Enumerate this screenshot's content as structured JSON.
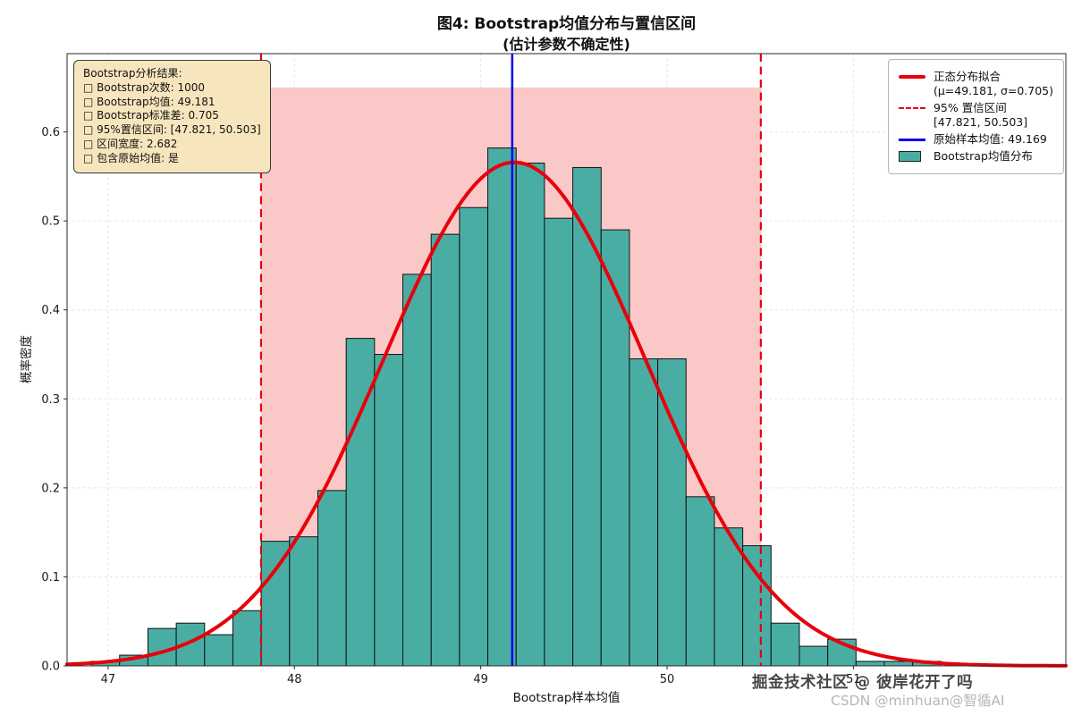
{
  "title": {
    "line1": "图4: Bootstrap均值分布与置信区间",
    "line2": "(估计参数不确定性)"
  },
  "axes": {
    "xlabel": "Bootstrap样本均值",
    "ylabel": "概率密度"
  },
  "stats_box": {
    "title": "Bootstrap分析结果:",
    "lines": [
      "□ Bootstrap次数: 1000",
      "□ Bootstrap均值: 49.181",
      "□ Bootstrap标准差: 0.705",
      "□ 95%置信区间: [47.821, 50.503]",
      "□ 区间宽度: 2.682",
      "□ 包含原始均值: 是"
    ]
  },
  "legend": {
    "items": [
      {
        "key": "red-solid-line",
        "label": "正态分布拟合",
        "sublabel": "(μ=49.181, σ=0.705)"
      },
      {
        "key": "red-dashed-line",
        "label": "95% 置信区间",
        "sublabel": "[47.821, 50.503]"
      },
      {
        "key": "blue-solid-line",
        "label": "原始样本均值: 49.169",
        "sublabel": ""
      },
      {
        "key": "teal-patch",
        "label": "Bootstrap均值分布",
        "sublabel": ""
      }
    ]
  },
  "watermarks": [
    {
      "text": "掘金技术社区 @ 彼岸花开了吗"
    },
    {
      "text": "CSDN @minhuan@智循AI"
    }
  ],
  "chart_data": {
    "type": "bar",
    "subtype": "histogram-with-normal-fit",
    "title": "图4: Bootstrap均值分布与置信区间 (估计参数不确定性)",
    "xlabel": "Bootstrap样本均值",
    "ylabel": "概率密度",
    "xlim": [
      46.78,
      52.14
    ],
    "ylim": [
      0,
      0.688
    ],
    "xticks": [
      47,
      48,
      49,
      50,
      51
    ],
    "yticks": [
      0.0,
      0.1,
      0.2,
      0.3,
      0.4,
      0.5,
      0.6
    ],
    "grid": true,
    "legend_position": "upper right",
    "histogram": {
      "name": "Bootstrap均值分布",
      "bin_start": 46.91,
      "bin_width": 0.152,
      "densities": [
        0.005,
        0.012,
        0.042,
        0.048,
        0.035,
        0.062,
        0.14,
        0.145,
        0.197,
        0.368,
        0.35,
        0.44,
        0.485,
        0.515,
        0.582,
        0.565,
        0.503,
        0.56,
        0.49,
        0.345,
        0.345,
        0.19,
        0.155,
        0.135,
        0.048,
        0.022,
        0.03,
        0.005,
        0.005,
        0.005
      ],
      "color": "#4aada4",
      "edge_color": "#111111"
    },
    "normal_fit": {
      "name": "正态分布拟合",
      "mu": 49.181,
      "sigma": 0.705,
      "color": "#e8000b"
    },
    "ci_lines": {
      "name": "95% 置信区间",
      "values": [
        47.821,
        50.503
      ],
      "color": "#e8000b"
    },
    "ci_span": {
      "from": 47.821,
      "to": 50.503,
      "top": 0.65,
      "color": "#fac8c7"
    },
    "mean_line": {
      "name": "原始样本均值",
      "value": 49.169,
      "color": "#0000f0"
    },
    "stats": {
      "bootstrap_runs": 1000,
      "bootstrap_mean": 49.181,
      "bootstrap_std": 0.705,
      "ci_95": [
        47.821,
        50.503
      ],
      "interval_width": 2.682,
      "contains_original_mean": "是",
      "original_sample_mean": 49.169
    }
  }
}
